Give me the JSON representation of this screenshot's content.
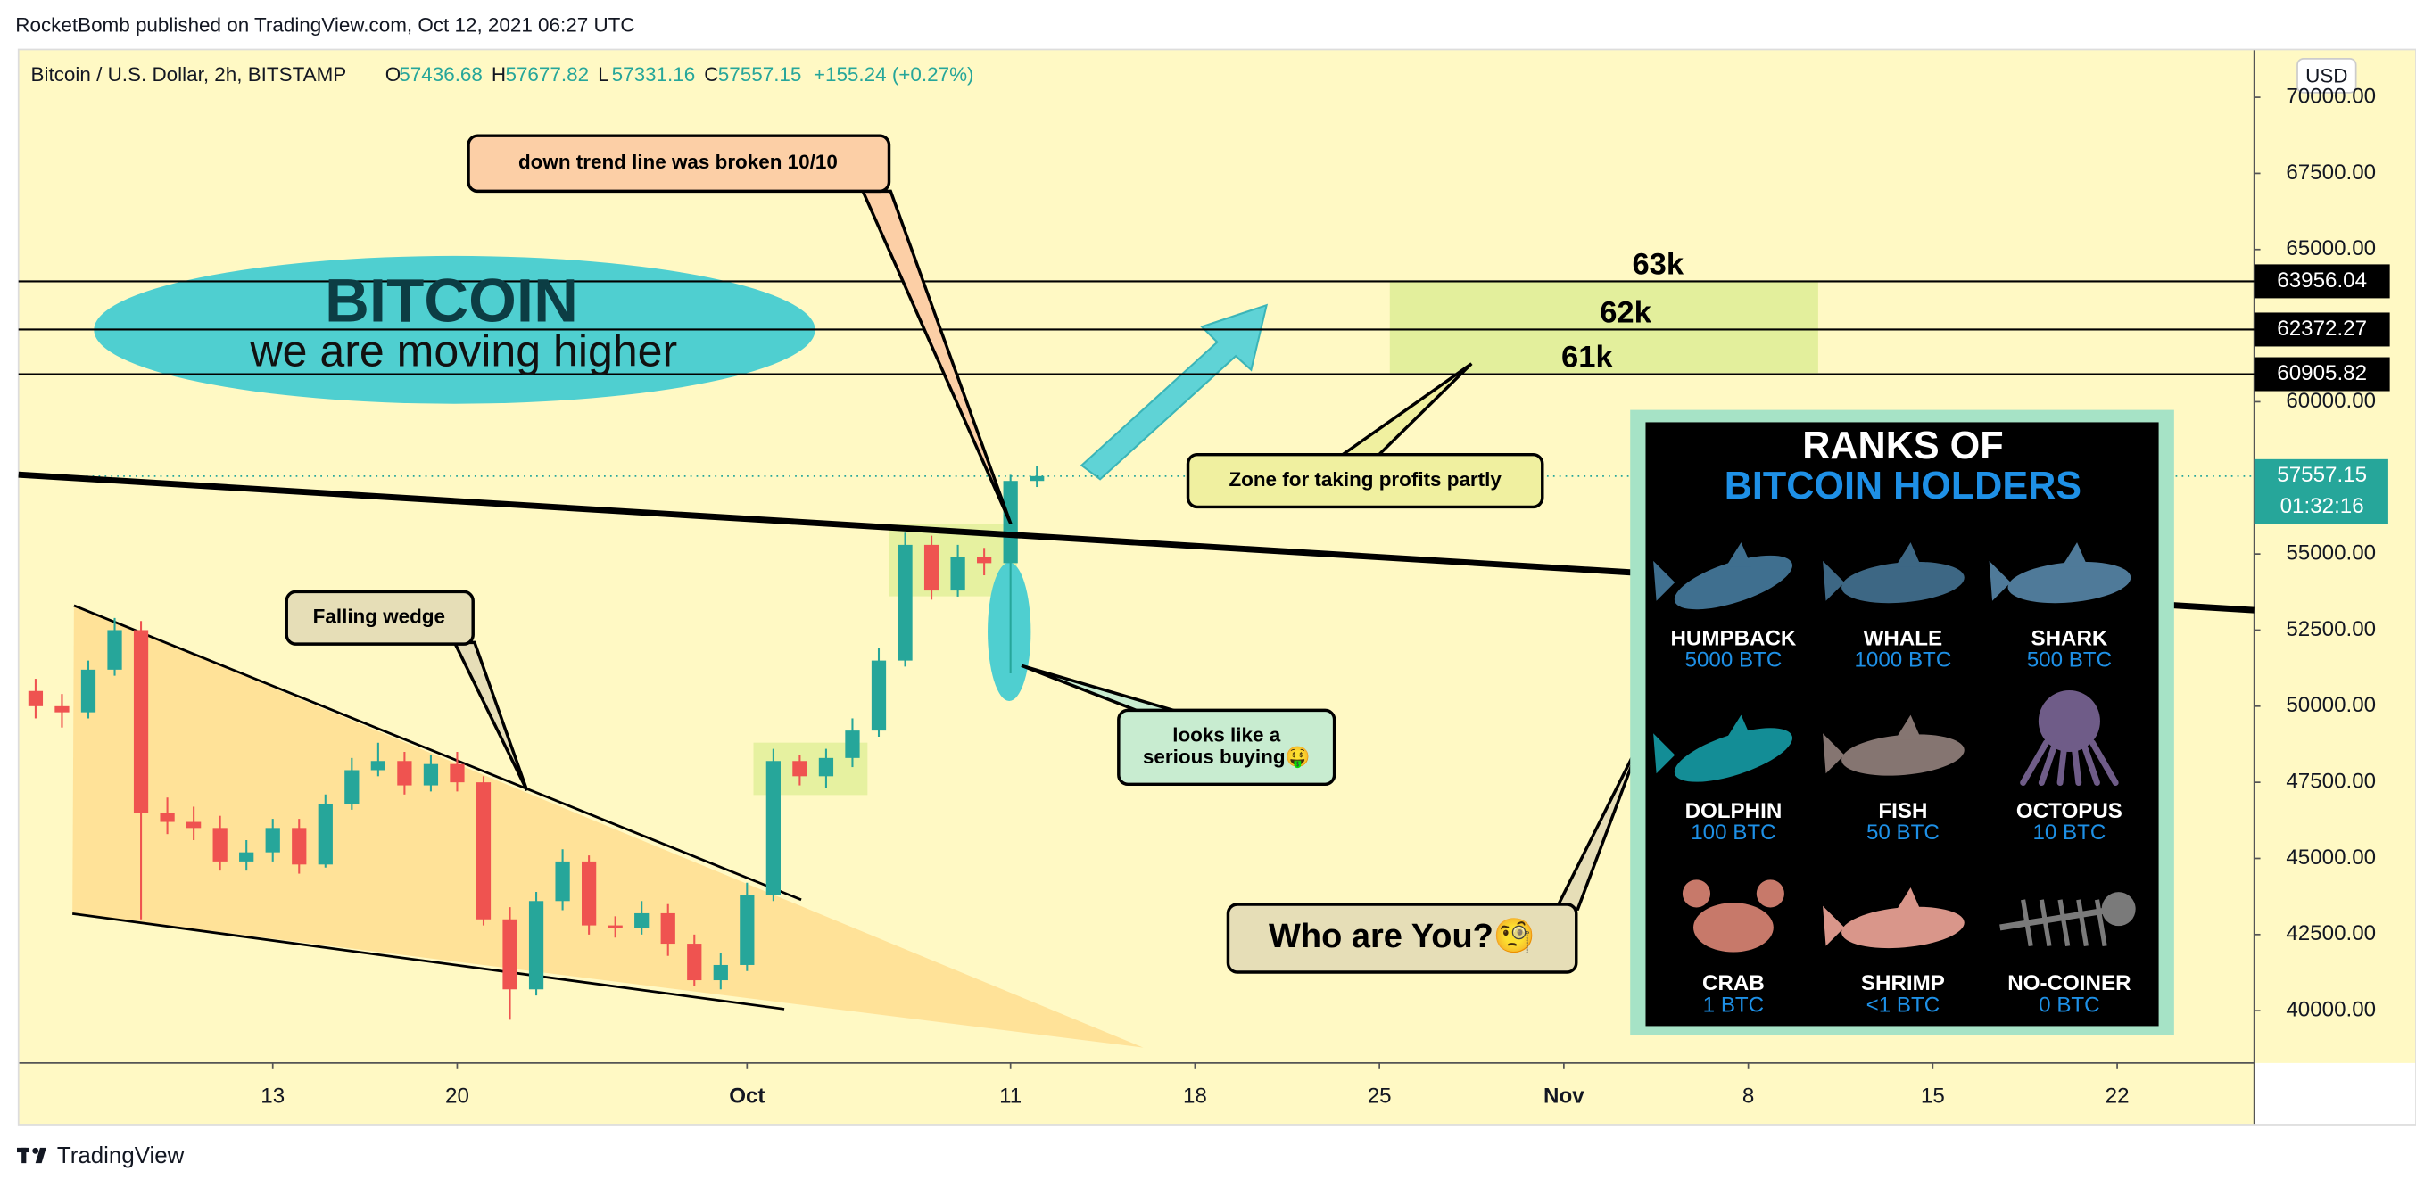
{
  "header": {
    "publisher": "RocketBomb published on TradingView.com, Oct 12, 2021 06:27 UTC"
  },
  "chart_data": {
    "type": "candlestick",
    "symbol": "Bitcoin / U.S. Dollar, 2h, BITSTAMP",
    "legend_ohlc": [
      {
        "label": "O",
        "value": "57436.68"
      },
      {
        "label": "H",
        "value": "57677.82"
      },
      {
        "label": "L",
        "value": "57331.16"
      },
      {
        "label": "C",
        "value": "57557.15"
      }
    ],
    "change": "+155.24 (+0.27%)",
    "currency": "USD",
    "x": [
      3,
      4,
      5,
      6,
      7,
      8,
      9,
      10,
      11,
      12,
      13,
      14,
      15,
      16,
      17,
      18,
      19,
      20,
      21,
      22,
      23,
      24,
      25,
      26,
      27,
      28,
      29,
      30,
      31,
      32,
      33,
      34,
      35,
      36,
      37,
      38,
      39,
      40,
      41
    ],
    "open": [
      50500,
      50000,
      49800,
      51200,
      52500,
      46500,
      46200,
      46000,
      44900,
      45200,
      46000,
      44800,
      46800,
      47900,
      48200,
      47400,
      48100,
      47500,
      43000,
      40700,
      43600,
      44900,
      42800,
      42700,
      43200,
      42200,
      41000,
      41500,
      43800,
      48200,
      47700,
      48300,
      49200,
      51500,
      55300,
      53800,
      54900,
      54700,
      57400
    ],
    "high": [
      50900,
      50400,
      51500,
      52900,
      52800,
      47000,
      46700,
      46400,
      45600,
      46300,
      46300,
      47100,
      48300,
      48800,
      48500,
      48400,
      48500,
      47700,
      43400,
      43900,
      45300,
      45100,
      43100,
      43600,
      43500,
      42500,
      41900,
      44200,
      48600,
      48400,
      48600,
      49600,
      51900,
      55700,
      55600,
      55300,
      55200,
      57600,
      57900
    ],
    "low": [
      49600,
      49300,
      49600,
      51000,
      43000,
      45800,
      45600,
      44600,
      44600,
      44900,
      44500,
      44700,
      46600,
      47700,
      47100,
      47200,
      47200,
      42800,
      39700,
      40500,
      43300,
      42500,
      42400,
      42500,
      41800,
      40800,
      40700,
      41300,
      43600,
      47400,
      47300,
      48000,
      49000,
      51300,
      53500,
      53600,
      54300,
      51080,
      57200
    ],
    "close": [
      50000,
      49800,
      51200,
      52500,
      46500,
      46200,
      46000,
      44900,
      45200,
      46000,
      44800,
      46800,
      47900,
      48200,
      47400,
      48100,
      47500,
      43000,
      40700,
      43600,
      44900,
      42800,
      42700,
      43200,
      42200,
      41000,
      41500,
      43800,
      48200,
      47700,
      48300,
      49200,
      51500,
      55300,
      53800,
      54900,
      54700,
      57400,
      57557
    ],
    "up_color": "#26a69a",
    "down_color": "#ef5350",
    "xlim": [
      2.35,
      87.2
    ],
    "xticks": [
      {
        "value": 12,
        "label": "13"
      },
      {
        "value": 19,
        "label": "20"
      },
      {
        "value": 30,
        "label": "Oct"
      },
      {
        "value": 40,
        "label": "11"
      },
      {
        "value": 47,
        "label": "18"
      },
      {
        "value": 54,
        "label": "25"
      },
      {
        "value": 61,
        "label": "Nov"
      },
      {
        "value": 68,
        "label": "8"
      },
      {
        "value": 75,
        "label": "15"
      },
      {
        "value": 82,
        "label": "22"
      }
    ],
    "ylim": [
      38280,
      71570
    ],
    "yticks": [
      {
        "value": 40000,
        "label": "40000.00"
      },
      {
        "value": 42500,
        "label": "42500.00"
      },
      {
        "value": 45000,
        "label": "45000.00"
      },
      {
        "value": 47500,
        "label": "47500.00"
      },
      {
        "value": 50000,
        "label": "50000.00"
      },
      {
        "value": 52500,
        "label": "52500.00"
      },
      {
        "value": 55000,
        "label": "55000.00"
      },
      {
        "value": 57500,
        "label": "57500.00"
      },
      {
        "value": 60000,
        "label": "60000.00"
      },
      {
        "value": 62500,
        "label": "62500.00"
      },
      {
        "value": 65000,
        "label": "65000.00"
      },
      {
        "value": 67500,
        "label": "67500.00"
      },
      {
        "value": 70000,
        "label": "70000.00"
      }
    ],
    "grid": false,
    "last_price": {
      "value": 57557.15,
      "label": "57557.15",
      "countdown": "01:32:16",
      "color": "#26a69a"
    },
    "levels": [
      {
        "value": 63956.04,
        "label": "63956.04",
        "name": "63k"
      },
      {
        "value": 62372.27,
        "label": "62372.27",
        "name": "62k"
      },
      {
        "value": 60905.82,
        "label": "60905.82",
        "name": "61k"
      }
    ]
  },
  "annotations": {
    "bitcoin": "BITCOIN",
    "moving_higher": "we are moving higher",
    "trend_break": "down trend line was broken 10/10",
    "falling_wedge": "Falling wedge",
    "serious_buying": [
      "looks like a",
      "serious buying🤑"
    ],
    "profit_zone": "Zone for taking profits partly",
    "who_are_you": "Who are You?🧐"
  },
  "ranks": {
    "title": [
      "RANKS OF",
      "BITCOIN HOLDERS"
    ],
    "items": [
      {
        "name": "HUMPBACK",
        "amount": "5000 BTC"
      },
      {
        "name": "WHALE",
        "amount": "1000 BTC"
      },
      {
        "name": "SHARK",
        "amount": "500 BTC"
      },
      {
        "name": "DOLPHIN",
        "amount": "100 BTC"
      },
      {
        "name": "FISH",
        "amount": "50 BTC"
      },
      {
        "name": "OCTOPUS",
        "amount": "10 BTC"
      },
      {
        "name": "CRAB",
        "amount": "1 BTC"
      },
      {
        "name": "SHRIMP",
        "amount": "<1 BTC"
      },
      {
        "name": "NO-COINER",
        "amount": "0 BTC"
      }
    ]
  },
  "footer": {
    "brand": "TradingView"
  }
}
